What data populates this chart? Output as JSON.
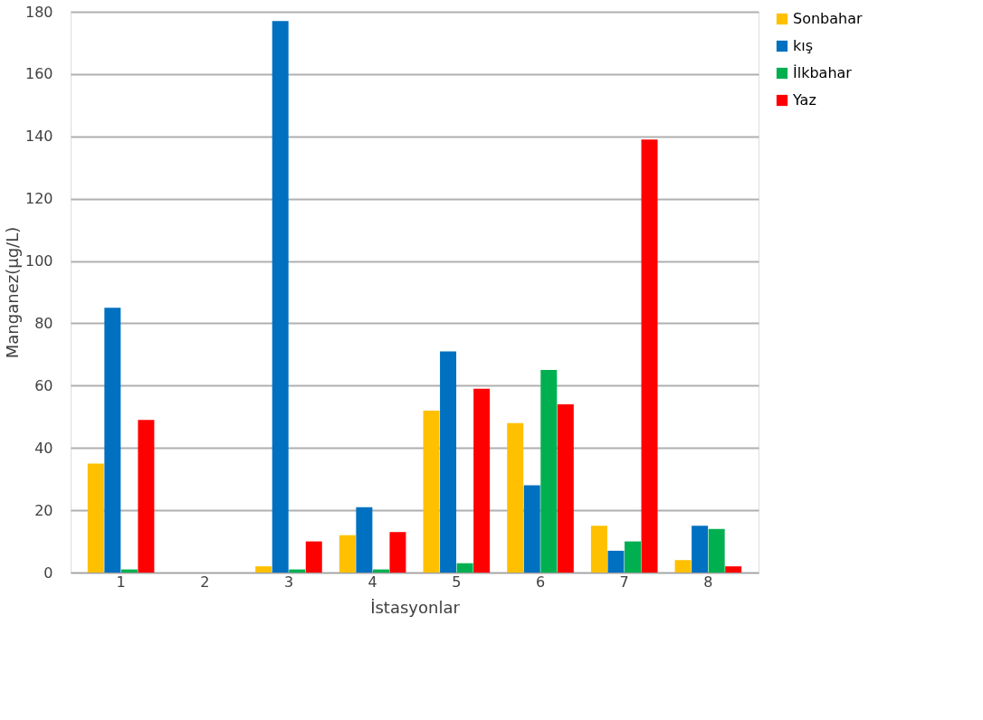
{
  "chart_data": {
    "type": "bar",
    "xlabel": "İstasyonlar",
    "ylabel": "Manganez(µg/L)",
    "categories": [
      "1",
      "2",
      "3",
      "4",
      "5",
      "6",
      "7",
      "8"
    ],
    "series": [
      {
        "name": "Sonbahar",
        "color": "#ffc000",
        "values": [
          35,
          0,
          2,
          12,
          52,
          48,
          15,
          4
        ]
      },
      {
        "name": "kış",
        "color": "#0070c0",
        "values": [
          85,
          0,
          177,
          21,
          71,
          28,
          7,
          15
        ]
      },
      {
        "name": "İlkbahar",
        "color": "#00b050",
        "values": [
          1,
          0,
          1,
          1,
          3,
          65,
          10,
          14
        ]
      },
      {
        "name": "Yaz",
        "color": "#ff0000",
        "values": [
          49,
          0,
          10,
          13,
          59,
          54,
          139,
          2
        ]
      }
    ],
    "ylim": [
      0,
      180
    ],
    "yticks": [
      0,
      20,
      40,
      60,
      80,
      100,
      120,
      140,
      160,
      180
    ],
    "grid": "y",
    "legend": "right"
  }
}
